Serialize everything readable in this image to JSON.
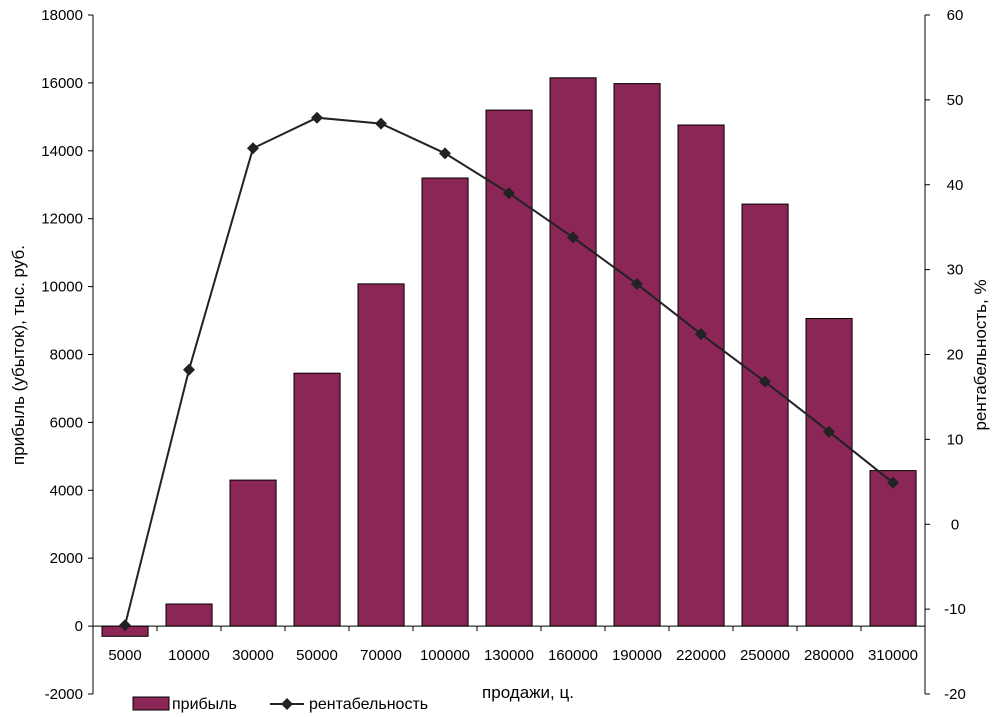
{
  "chart_data": {
    "type": "bar",
    "categories": [
      "5000",
      "10000",
      "30000",
      "50000",
      "70000",
      "100000",
      "130000",
      "160000",
      "190000",
      "220000",
      "250000",
      "280000",
      "310000"
    ],
    "series": [
      {
        "name": "прибыль",
        "type": "bar",
        "axis": "left",
        "values": [
          -300,
          650,
          4300,
          7450,
          10080,
          13200,
          15200,
          16150,
          15980,
          14760,
          12430,
          9060,
          4580
        ]
      },
      {
        "name": "рентабельность",
        "type": "line",
        "axis": "right",
        "values": [
          -11.9,
          18.2,
          44.3,
          47.9,
          47.2,
          43.7,
          39.0,
          33.8,
          28.3,
          22.4,
          16.8,
          10.9,
          4.9
        ]
      }
    ],
    "xlabel": "продажи, ц.",
    "ylabel": "прибыль (убыток), тыс. руб.",
    "y2label": "рентабельность, %",
    "ylim": [
      -2000,
      18000
    ],
    "y2lim": [
      -20,
      60
    ],
    "yticks": [
      "-2000",
      "0",
      "2000",
      "4000",
      "6000",
      "8000",
      "10000",
      "12000",
      "14000",
      "16000",
      "18000"
    ],
    "y2ticks": [
      "-20",
      "-10",
      "0",
      "10",
      "20",
      "30",
      "40",
      "50",
      "60"
    ],
    "grid": false,
    "legend_position": "bottom",
    "colors": {
      "bar": "#8b2656",
      "line": "#222222"
    }
  }
}
